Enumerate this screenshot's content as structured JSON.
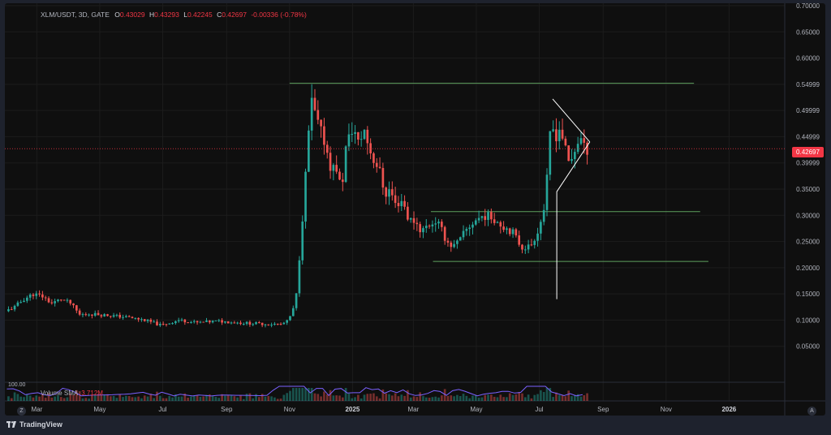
{
  "legend": {
    "symbol": "XLM/USDT, 3D, GATE",
    "open_label": "O",
    "open": "0.43029",
    "high_label": "H",
    "high": "0.43293",
    "low_label": "L",
    "low": "0.42245",
    "close_label": "C",
    "close": "0.42697",
    "change": "-0.00336 (-0.78%)"
  },
  "last_price": "0.42697",
  "volume": {
    "label": "Volume SMA",
    "value": "3.712M"
  },
  "indicator_scale": "100.00",
  "timezone_button": "Z",
  "auto_button": "A",
  "brand": "TradingView",
  "colors": {
    "up": "#26a69a",
    "down": "#ef5350",
    "line": "#5fa05f",
    "pattern": "#ffffff",
    "price": "#f23645",
    "volume_sma": "#7b61ff"
  },
  "chart_data": {
    "type": "candlestick",
    "y_axis": {
      "ticks": [
        "0.70000",
        "0.65000",
        "0.60000",
        "0.54999",
        "0.49999",
        "0.44999",
        "0.39999",
        "0.35000",
        "0.30000",
        "0.25000",
        "0.20000",
        "0.15000",
        "0.10000",
        "0.05000"
      ],
      "range": [
        0.0,
        0.7
      ]
    },
    "x_axis": {
      "ticks": [
        {
          "label": "Mar",
          "date": "2024-03-01"
        },
        {
          "label": "May",
          "date": "2024-05-01"
        },
        {
          "label": "Jul",
          "date": "2024-07-01"
        },
        {
          "label": "Sep",
          "date": "2024-09-01"
        },
        {
          "label": "Nov",
          "date": "2024-11-01"
        },
        {
          "label": "2025",
          "date": "2025-01-01",
          "bold": true
        },
        {
          "label": "Mar",
          "date": "2025-03-01"
        },
        {
          "label": "May",
          "date": "2025-05-01"
        },
        {
          "label": "Jul",
          "date": "2025-07-01"
        },
        {
          "label": "Sep",
          "date": "2025-09-01"
        },
        {
          "label": "Nov",
          "date": "2025-11-01"
        },
        {
          "label": "2026",
          "date": "2026-01-01",
          "bold": true
        }
      ],
      "range": [
        "2024-01-30",
        "2026-02-24"
      ]
    },
    "price_path": [
      [
        "2024-02-01",
        0.117
      ],
      [
        "2024-02-10",
        0.125
      ],
      [
        "2024-02-19",
        0.14
      ],
      [
        "2024-02-28",
        0.15
      ],
      [
        "2024-03-08",
        0.145
      ],
      [
        "2024-03-17",
        0.132
      ],
      [
        "2024-03-26",
        0.14
      ],
      [
        "2024-04-04",
        0.132
      ],
      [
        "2024-04-13",
        0.11
      ],
      [
        "2024-04-22",
        0.112
      ],
      [
        "2024-05-06",
        0.11
      ],
      [
        "2024-05-27",
        0.106
      ],
      [
        "2024-06-15",
        0.1
      ],
      [
        "2024-07-01",
        0.09
      ],
      [
        "2024-07-18",
        0.1
      ],
      [
        "2024-08-05",
        0.095
      ],
      [
        "2024-08-25",
        0.098
      ],
      [
        "2024-09-15",
        0.095
      ],
      [
        "2024-10-05",
        0.093
      ],
      [
        "2024-10-25",
        0.092
      ],
      [
        "2024-11-01",
        0.098
      ],
      [
        "2024-11-07",
        0.125
      ],
      [
        "2024-11-10",
        0.16
      ],
      [
        "2024-11-13",
        0.25
      ],
      [
        "2024-11-16",
        0.32
      ],
      [
        "2024-11-20",
        0.43
      ],
      [
        "2024-11-23",
        0.52
      ],
      [
        "2024-11-26",
        0.5
      ],
      [
        "2024-11-29",
        0.48
      ],
      [
        "2024-12-02",
        0.46
      ],
      [
        "2024-12-05",
        0.45
      ],
      [
        "2024-12-08",
        0.43
      ],
      [
        "2024-12-11",
        0.4
      ],
      [
        "2024-12-14",
        0.385
      ],
      [
        "2024-12-17",
        0.4
      ],
      [
        "2024-12-20",
        0.37
      ],
      [
        "2024-12-23",
        0.345
      ],
      [
        "2024-12-26",
        0.42
      ],
      [
        "2024-12-29",
        0.44
      ],
      [
        "2025-01-03",
        0.47
      ],
      [
        "2025-01-09",
        0.43
      ],
      [
        "2025-01-13",
        0.47
      ],
      [
        "2025-01-17",
        0.44
      ],
      [
        "2025-01-22",
        0.41
      ],
      [
        "2025-01-28",
        0.39
      ],
      [
        "2025-02-03",
        0.34
      ],
      [
        "2025-02-08",
        0.35
      ],
      [
        "2025-02-13",
        0.32
      ],
      [
        "2025-02-20",
        0.33
      ],
      [
        "2025-02-26",
        0.29
      ],
      [
        "2025-03-04",
        0.29
      ],
      [
        "2025-03-10",
        0.27
      ],
      [
        "2025-03-16",
        0.28
      ],
      [
        "2025-03-25",
        0.29
      ],
      [
        "2025-04-04",
        0.25
      ],
      [
        "2025-04-10",
        0.24
      ],
      [
        "2025-04-16",
        0.25
      ],
      [
        "2025-04-22",
        0.27
      ],
      [
        "2025-05-01",
        0.29
      ],
      [
        "2025-05-10",
        0.3
      ],
      [
        "2025-05-19",
        0.295
      ],
      [
        "2025-05-28",
        0.28
      ],
      [
        "2025-06-06",
        0.27
      ],
      [
        "2025-06-15",
        0.24
      ],
      [
        "2025-06-24",
        0.24
      ],
      [
        "2025-07-03",
        0.28
      ],
      [
        "2025-07-09",
        0.33
      ],
      [
        "2025-07-12",
        0.44
      ],
      [
        "2025-07-15",
        0.47
      ],
      [
        "2025-07-18",
        0.45
      ],
      [
        "2025-07-23",
        0.47
      ],
      [
        "2025-07-27",
        0.43
      ],
      [
        "2025-07-31",
        0.4
      ],
      [
        "2025-08-04",
        0.41
      ],
      [
        "2025-08-08",
        0.44
      ],
      [
        "2025-08-12",
        0.445
      ],
      [
        "2025-08-15",
        0.427
      ]
    ],
    "horizontal_levels": [
      {
        "price": 0.552,
        "from": "2024-11-01",
        "to": "2025-11-28"
      },
      {
        "price": 0.307,
        "from": "2025-03-18",
        "to": "2025-12-04"
      },
      {
        "price": 0.212,
        "from": "2025-03-20",
        "to": "2025-12-12"
      }
    ],
    "pattern": {
      "upper": [
        [
          "2025-07-14",
          0.522
        ],
        [
          "2025-08-19",
          0.44
        ]
      ],
      "lower": [
        [
          "2025-07-18",
          0.14
        ],
        [
          "2025-07-18",
          0.345
        ],
        [
          "2025-08-19",
          0.44
        ]
      ]
    },
    "grid": true
  }
}
